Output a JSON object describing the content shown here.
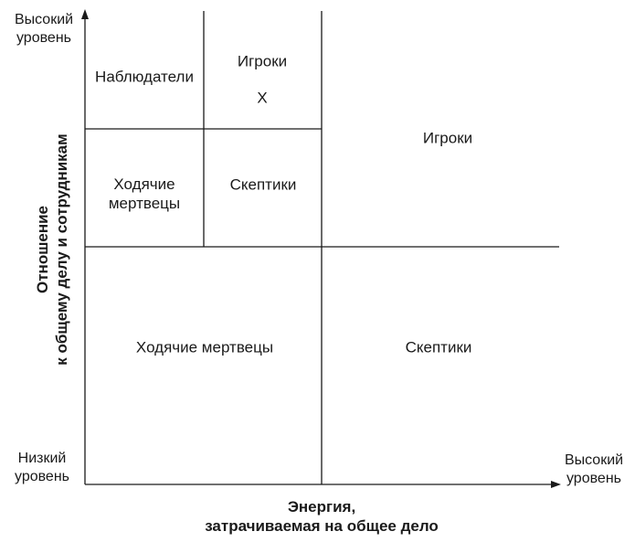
{
  "y_axis": {
    "top_label_line1": "Высокий",
    "top_label_line2": "уровень",
    "bottom_label_line1": "Низкий",
    "bottom_label_line2": "уровень",
    "title_line1": "Отношение",
    "title_line2": "к общему делу и сотрудникам"
  },
  "x_axis": {
    "right_label_line1": "Высокий",
    "right_label_line2": "уровень",
    "title_line1": "Энергия,",
    "title_line2": "затрачиваемая на общее дело"
  },
  "quadrants": {
    "top_left": {
      "top_left": "Наблюдатели",
      "top_right_line1": "Игроки",
      "top_right_line2": "X",
      "bottom_left_line1": "Ходячие",
      "bottom_left_line2": "мертвецы",
      "bottom_right": "Скептики"
    },
    "top_right": "Игроки",
    "bottom_left": "Ходячие мертвецы",
    "bottom_right": "Скептики"
  }
}
